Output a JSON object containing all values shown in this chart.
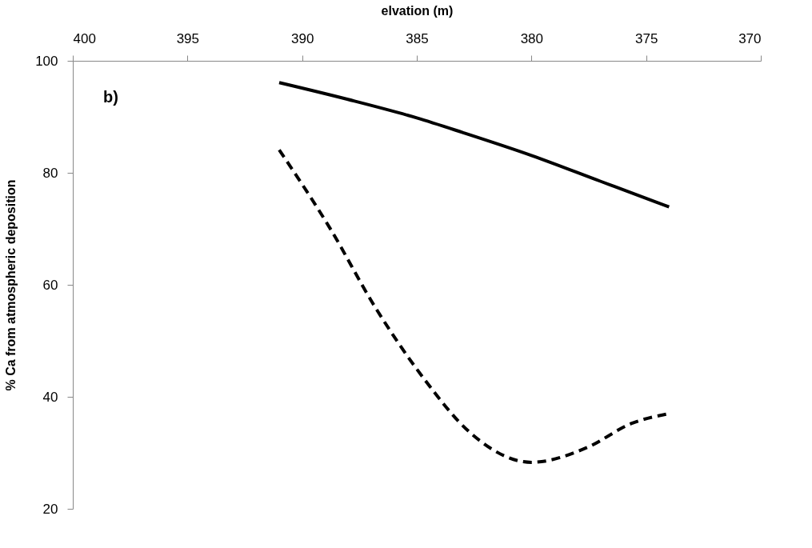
{
  "chart_data": {
    "type": "line",
    "xlabel": "elvation (m)",
    "ylabel": "% Ca from atmospheric deposition",
    "xlim": [
      400,
      370
    ],
    "xticks": [
      400,
      395,
      390,
      385,
      380,
      375,
      370
    ],
    "ylim": [
      20,
      100
    ],
    "yticks": [
      20,
      40,
      60,
      80,
      100
    ],
    "grid": false,
    "marker": "none",
    "annotations": [
      "b)"
    ],
    "series": [
      {
        "color": "#000000",
        "line_style": "solid",
        "x": [
          391,
          388,
          385,
          383,
          380,
          377,
          374
        ],
        "values": [
          96.1,
          93.1,
          89.8,
          87.2,
          83.1,
          78.5,
          73.9
        ]
      },
      {
        "color": "#000000",
        "line_style": "dashed",
        "x": [
          391,
          388.8,
          386.8,
          384.7,
          382.7,
          380,
          377.6,
          375.6,
          374
        ],
        "values": [
          84.1,
          70.2,
          55.9,
          43.3,
          33.7,
          28.3,
          30.9,
          35.3,
          37.0
        ]
      }
    ]
  }
}
